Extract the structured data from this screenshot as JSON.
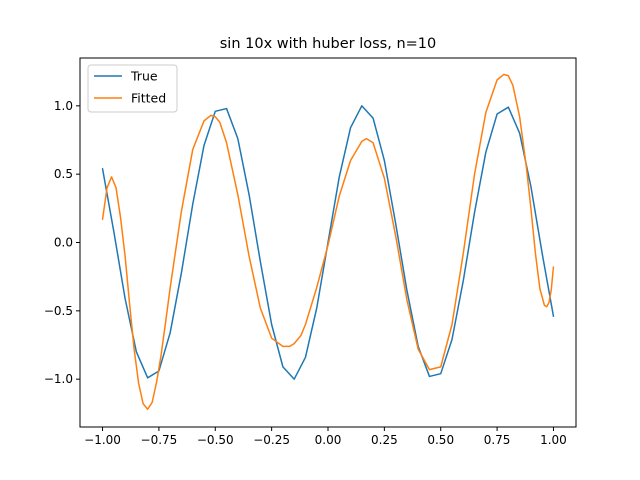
{
  "chart_data": {
    "type": "line",
    "title": "sin 10x with huber loss, n=10",
    "xlabel": "",
    "ylabel": "",
    "xlim": [
      -1.1,
      1.1
    ],
    "ylim": [
      -1.35,
      1.35
    ],
    "x_ticks": [
      -1.0,
      -0.75,
      -0.5,
      -0.25,
      0.0,
      0.25,
      0.5,
      0.75,
      1.0
    ],
    "x_tick_labels": [
      "−1.00",
      "−0.75",
      "−0.50",
      "−0.25",
      "0.00",
      "0.25",
      "0.50",
      "0.75",
      "1.00"
    ],
    "y_ticks": [
      -1.0,
      -0.5,
      0.0,
      0.5,
      1.0
    ],
    "y_tick_labels": [
      "−1.0",
      "−0.5",
      "0.0",
      "0.5",
      "1.0"
    ],
    "grid": false,
    "legend_position": "upper-left",
    "series": [
      {
        "name": "True",
        "color": "#1f77b4",
        "x": [
          -1.0,
          -0.95,
          -0.9,
          -0.85,
          -0.8,
          -0.75,
          -0.7,
          -0.65,
          -0.6,
          -0.55,
          -0.5,
          -0.45,
          -0.4,
          -0.35,
          -0.3,
          -0.25,
          -0.2,
          -0.15,
          -0.1,
          -0.05,
          0.0,
          0.05,
          0.1,
          0.15,
          0.2,
          0.25,
          0.3,
          0.35,
          0.4,
          0.45,
          0.5,
          0.55,
          0.6,
          0.65,
          0.7,
          0.75,
          0.8,
          0.85,
          0.9,
          0.95,
          1.0
        ],
        "y": [
          0.54,
          0.08,
          -0.41,
          -0.8,
          -0.99,
          -0.94,
          -0.66,
          -0.22,
          0.28,
          0.71,
          0.96,
          0.98,
          0.76,
          0.35,
          -0.14,
          -0.6,
          -0.91,
          -1.0,
          -0.84,
          -0.48,
          0.0,
          0.48,
          0.84,
          1.0,
          0.91,
          0.6,
          0.14,
          -0.35,
          -0.76,
          -0.98,
          -0.96,
          -0.71,
          -0.28,
          0.22,
          0.66,
          0.94,
          0.99,
          0.8,
          0.41,
          -0.08,
          -0.54
        ]
      },
      {
        "name": "Fitted",
        "color": "#ff7f0e",
        "x": [
          -1.0,
          -0.98,
          -0.96,
          -0.94,
          -0.92,
          -0.9,
          -0.88,
          -0.86,
          -0.84,
          -0.82,
          -0.8,
          -0.78,
          -0.76,
          -0.74,
          -0.72,
          -0.7,
          -0.65,
          -0.6,
          -0.55,
          -0.52,
          -0.5,
          -0.48,
          -0.45,
          -0.4,
          -0.35,
          -0.3,
          -0.25,
          -0.2,
          -0.17,
          -0.15,
          -0.12,
          -0.1,
          -0.05,
          0.0,
          0.05,
          0.1,
          0.15,
          0.17,
          0.2,
          0.25,
          0.3,
          0.35,
          0.4,
          0.45,
          0.5,
          0.55,
          0.6,
          0.65,
          0.7,
          0.75,
          0.78,
          0.8,
          0.82,
          0.85,
          0.88,
          0.9,
          0.92,
          0.94,
          0.96,
          0.97,
          0.98,
          0.99,
          1.0
        ],
        "y": [
          0.17,
          0.4,
          0.48,
          0.4,
          0.18,
          -0.1,
          -0.45,
          -0.78,
          -1.03,
          -1.18,
          -1.22,
          -1.17,
          -1.02,
          -0.82,
          -0.58,
          -0.33,
          0.23,
          0.68,
          0.89,
          0.93,
          0.92,
          0.88,
          0.73,
          0.35,
          -0.1,
          -0.48,
          -0.7,
          -0.76,
          -0.76,
          -0.74,
          -0.68,
          -0.6,
          -0.33,
          -0.02,
          0.34,
          0.6,
          0.74,
          0.76,
          0.73,
          0.47,
          0.05,
          -0.42,
          -0.78,
          -0.93,
          -0.91,
          -0.6,
          -0.08,
          0.5,
          0.95,
          1.19,
          1.23,
          1.22,
          1.15,
          0.92,
          0.55,
          0.25,
          -0.08,
          -0.34,
          -0.46,
          -0.47,
          -0.44,
          -0.35,
          -0.18
        ]
      }
    ]
  }
}
